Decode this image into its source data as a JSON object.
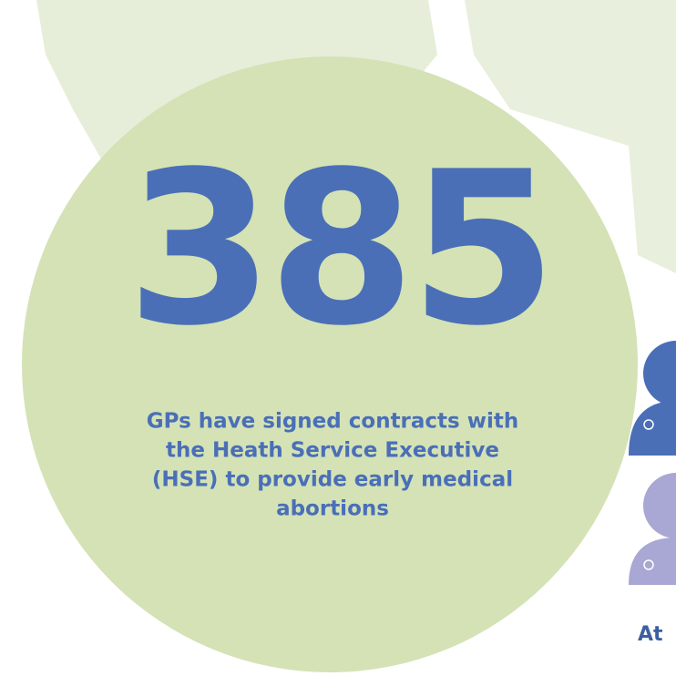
{
  "headline": {
    "number": "385",
    "description_lines": [
      "GPs have signed contracts with",
      "the Heath Service Executive",
      "(HSE) to provide early medical",
      "abortions"
    ]
  },
  "side_caption": "At"
}
